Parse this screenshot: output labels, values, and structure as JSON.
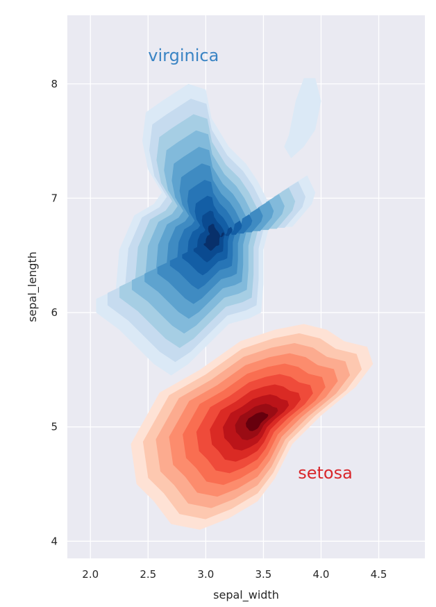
{
  "chart_data": {
    "type": "kde_contour",
    "xlabel": "sepal_width",
    "ylabel": "sepal_length",
    "xlim": [
      1.8,
      4.9
    ],
    "ylim": [
      3.85,
      8.6
    ],
    "xticks": [
      "2.0",
      "2.5",
      "3.0",
      "3.5",
      "4.0",
      "4.5"
    ],
    "yticks": [
      "4",
      "5",
      "6",
      "7",
      "8"
    ],
    "grid": true,
    "background": "#eaeaf2",
    "series": [
      {
        "name": "virginica",
        "label_position": [
          2.5,
          8.2
        ],
        "label_color": "#3a84c4",
        "peak": [
          3.08,
          6.65
        ],
        "levels": 10,
        "colors": [
          "#dbe9f6",
          "#c6dbef",
          "#a6cee4",
          "#82badb",
          "#5ea3cf",
          "#3f8bc2",
          "#2775b6",
          "#135ea5",
          "#0a4a90",
          "#08306b"
        ]
      },
      {
        "name": "setosa",
        "label_position": [
          3.8,
          4.55
        ],
        "label_color": "#d8262b",
        "peak": [
          3.45,
          5.05
        ],
        "levels": 10,
        "colors": [
          "#fee2d5",
          "#fdc8b0",
          "#fcab8f",
          "#fc8c6d",
          "#f96e51",
          "#ef4b3a",
          "#da2a24",
          "#bb1419",
          "#9a0c14",
          "#67000d"
        ]
      }
    ]
  }
}
